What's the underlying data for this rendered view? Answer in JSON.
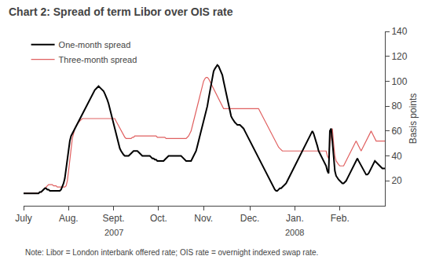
{
  "chart_data": {
    "type": "line",
    "title": "Chart 2: Spread of term Libor over OIS rate",
    "ylabel": "Basis points",
    "note": "Note: Libor = London interbank offered rate; OIS rate = overnight indexed swap rate.",
    "annotations": [
      {
        "text": "2007",
        "category": "Sept."
      },
      {
        "text": "2008",
        "category": "Jan."
      }
    ],
    "categories": [
      "July",
      null,
      null,
      null,
      null,
      null,
      null,
      null,
      null,
      null,
      null,
      null,
      null,
      null,
      null,
      null,
      null,
      null,
      null,
      null,
      null,
      null,
      null,
      null,
      null,
      null,
      null,
      null,
      null,
      null,
      null,
      null,
      null,
      null,
      null,
      null,
      "Aug.",
      null,
      null,
      null,
      null,
      null,
      null,
      null,
      null,
      null,
      null,
      null,
      null,
      null,
      null,
      null,
      null,
      null,
      null,
      null,
      null,
      null,
      null,
      null,
      null,
      null,
      null,
      null,
      null,
      null,
      null,
      null,
      null,
      null,
      null,
      null,
      "Sept.",
      null,
      null,
      null,
      null,
      null,
      null,
      null,
      null,
      null,
      null,
      null,
      null,
      null,
      null,
      null,
      null,
      null,
      null,
      null,
      null,
      null,
      null,
      null,
      null,
      null,
      null,
      null,
      null,
      null,
      null,
      null,
      null,
      null,
      null,
      null,
      "Oct.",
      null,
      null,
      null,
      null,
      null,
      null,
      null,
      null,
      null,
      null,
      null,
      null,
      null,
      null,
      null,
      null,
      null,
      null,
      null,
      null,
      null,
      null,
      null,
      null,
      null,
      null,
      null,
      null,
      null,
      null,
      null,
      null,
      null,
      null,
      null,
      "Nov.",
      null,
      null,
      null,
      null,
      null,
      null,
      null,
      null,
      null,
      null,
      null,
      null,
      null,
      null,
      null,
      null,
      null,
      null,
      null,
      null,
      null,
      null,
      null,
      null,
      null,
      null,
      null,
      null,
      null,
      null,
      null,
      null,
      null,
      null,
      null,
      null,
      "Dec.",
      null,
      null,
      null,
      null,
      null,
      null,
      null,
      null,
      null,
      null,
      null,
      null,
      null,
      null,
      null,
      null,
      null,
      null,
      null,
      null,
      null,
      null,
      null,
      null,
      null,
      null,
      null,
      null,
      null,
      null,
      null,
      null,
      null,
      null,
      null,
      "Jan.",
      null,
      null,
      null,
      null,
      null,
      null,
      null,
      null,
      null,
      null,
      null,
      null,
      null,
      null,
      null,
      null,
      null,
      null,
      null,
      null,
      null,
      null,
      null,
      null,
      null,
      null,
      null,
      null,
      null,
      null,
      null,
      null,
      null,
      null,
      null,
      "Feb.",
      null,
      null,
      null,
      null,
      null,
      null,
      null,
      null,
      null,
      null,
      null,
      null,
      null,
      null,
      null,
      null,
      null,
      null,
      null,
      null,
      null,
      null,
      null,
      null,
      null,
      null,
      null,
      null,
      null,
      null,
      null,
      null,
      null,
      null,
      null,
      null
    ],
    "series": [
      {
        "name": "One-month spread",
        "color": "#000000",
        "values": [
          10,
          10,
          10,
          10,
          10,
          10,
          10,
          10,
          10,
          10,
          10,
          10,
          10,
          11,
          11,
          12,
          13,
          14,
          14,
          13,
          13,
          12,
          12,
          12,
          12,
          12,
          12,
          12,
          12,
          12,
          13,
          15,
          18,
          22,
          30,
          38,
          45,
          52,
          56,
          58,
          60,
          62,
          64,
          66,
          68,
          70,
          72,
          74,
          76,
          78,
          80,
          82,
          84,
          86,
          88,
          90,
          92,
          93,
          94,
          95,
          96,
          95,
          94,
          93,
          92,
          90,
          88,
          85,
          82,
          78,
          74,
          70,
          66,
          62,
          58,
          54,
          50,
          46,
          44,
          42,
          41,
          40,
          40,
          40,
          40,
          41,
          42,
          43,
          44,
          44,
          44,
          44,
          43,
          42,
          41,
          40,
          40,
          40,
          40,
          40,
          40,
          40,
          39,
          38,
          38,
          37,
          37,
          36,
          36,
          36,
          36,
          36,
          36,
          37,
          38,
          39,
          40,
          40,
          40,
          40,
          40,
          40,
          40,
          40,
          40,
          40,
          40,
          39,
          38,
          37,
          36,
          36,
          36,
          36,
          36,
          38,
          40,
          42,
          44,
          48,
          52,
          56,
          60,
          64,
          68,
          72,
          76,
          80,
          86,
          92,
          98,
          104,
          108,
          110,
          112,
          113,
          112,
          110,
          108,
          105,
          100,
          95,
          90,
          85,
          80,
          75,
          72,
          70,
          68,
          67,
          66,
          65,
          65,
          65,
          64,
          63,
          62,
          60,
          58,
          56,
          54,
          52,
          50,
          48,
          46,
          44,
          42,
          40,
          38,
          36,
          34,
          32,
          30,
          28,
          26,
          24,
          22,
          20,
          18,
          16,
          14,
          13,
          12,
          12,
          13,
          14,
          14,
          15,
          16,
          17,
          18,
          20,
          22,
          24,
          26,
          28,
          30,
          32,
          34,
          36,
          38,
          40,
          42,
          44,
          46,
          48,
          50,
          52,
          54,
          56,
          58,
          60,
          58,
          55,
          52,
          48,
          44,
          42,
          40,
          38,
          36,
          34,
          32,
          28,
          26,
          60,
          62,
          52,
          38,
          28,
          24,
          22,
          21,
          20,
          19,
          18,
          18,
          19,
          20,
          22,
          24,
          26,
          28,
          30,
          32,
          34,
          36,
          38,
          36,
          34,
          32,
          30,
          28,
          26,
          25,
          25,
          26,
          28,
          30,
          32,
          34,
          36,
          35,
          34,
          33,
          32,
          31,
          30,
          30,
          30
        ]
      },
      {
        "name": "Three-month spread",
        "color": "#e06060",
        "values": [
          10,
          10,
          10,
          10,
          10,
          10,
          10,
          10,
          10,
          10,
          10,
          10,
          10,
          11,
          11,
          12,
          13,
          14,
          15,
          16,
          17,
          17,
          17,
          17,
          16,
          16,
          16,
          15,
          15,
          15,
          15,
          15,
          15,
          15,
          16,
          20,
          28,
          38,
          48,
          54,
          58,
          62,
          64,
          66,
          67,
          68,
          69,
          70,
          70,
          70,
          70,
          70,
          70,
          70,
          70,
          70,
          70,
          70,
          70,
          70,
          70,
          70,
          70,
          70,
          70,
          70,
          70,
          70,
          70,
          70,
          70,
          70,
          70,
          70,
          68,
          66,
          64,
          62,
          60,
          58,
          56,
          55,
          54,
          54,
          54,
          54,
          54,
          55,
          55,
          56,
          56,
          56,
          56,
          56,
          56,
          56,
          56,
          56,
          56,
          56,
          56,
          56,
          56,
          56,
          56,
          56,
          56,
          55,
          55,
          55,
          55,
          55,
          55,
          55,
          54,
          54,
          54,
          54,
          54,
          54,
          54,
          54,
          54,
          54,
          54,
          54,
          54,
          54,
          54,
          54,
          54,
          55,
          56,
          58,
          60,
          64,
          68,
          72,
          76,
          80,
          84,
          88,
          92,
          96,
          100,
          102,
          103,
          103,
          102,
          100,
          98,
          96,
          94,
          92,
          90,
          88,
          86,
          84,
          82,
          80,
          78,
          78,
          78,
          78,
          78,
          78,
          78,
          78,
          78,
          78,
          78,
          78,
          78,
          78,
          78,
          78,
          78,
          78,
          78,
          78,
          78,
          78,
          78,
          78,
          78,
          78,
          78,
          78,
          78,
          76,
          74,
          72,
          70,
          68,
          66,
          64,
          62,
          60,
          58,
          56,
          54,
          52,
          50,
          48,
          47,
          46,
          45,
          44,
          44,
          44,
          44,
          44,
          44,
          44,
          44,
          44,
          44,
          44,
          44,
          44,
          44,
          44,
          44,
          44,
          44,
          44,
          44,
          44,
          44,
          44,
          44,
          44,
          44,
          44,
          44,
          44,
          44,
          44,
          44,
          44,
          44,
          44,
          44,
          40,
          38,
          50,
          55,
          62,
          50,
          40,
          36,
          34,
          33,
          32,
          32,
          32,
          32,
          34,
          36,
          38,
          40,
          42,
          44,
          46,
          48,
          50,
          52,
          50,
          48,
          46,
          44,
          46,
          48,
          50,
          52,
          54,
          56,
          58,
          60,
          58,
          56,
          54,
          52,
          52,
          52,
          52,
          52,
          52,
          52,
          52
        ]
      }
    ],
    "ylim": [
      0,
      140
    ],
    "yticks": [
      20,
      40,
      60,
      80,
      100,
      120,
      140
    ],
    "grid": false,
    "legend": "upper left"
  }
}
